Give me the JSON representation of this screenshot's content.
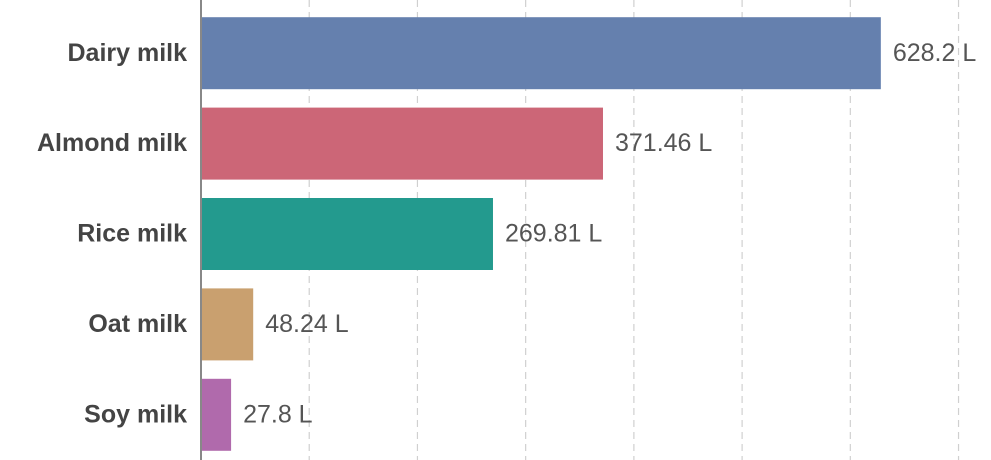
{
  "chart_data": {
    "type": "hbar",
    "categories": [
      "Dairy milk",
      "Almond milk",
      "Rice milk",
      "Oat milk",
      "Soy milk"
    ],
    "values": [
      628.2,
      371.46,
      269.81,
      48.24,
      27.8
    ],
    "value_labels": [
      "628.2 L",
      "371.46 L",
      "269.81 L",
      "48.24 L",
      "27.8 L"
    ],
    "colors": [
      "#6580ae",
      "#cc6677",
      "#239a8e",
      "#c9a06f",
      "#b06aac"
    ],
    "xlim": [
      0,
      730
    ],
    "xticks": [
      0,
      100,
      200,
      300,
      400,
      500,
      600,
      700
    ],
    "grid": true
  }
}
